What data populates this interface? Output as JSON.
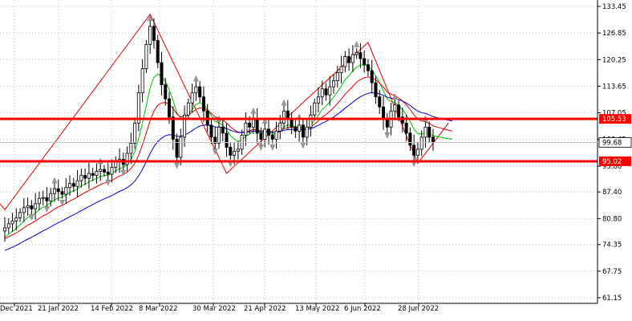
{
  "chart_data": {
    "type": "candlestick",
    "y_axis": {
      "ticks": [
        "133.45",
        "126.85",
        "120.25",
        "113.65",
        "107.05",
        "100.45",
        "93.80",
        "87.40",
        "80.80",
        "74.35",
        "67.75",
        "61.15"
      ],
      "ylim": [
        61.15,
        133.45
      ]
    },
    "x_axis": {
      "ticks": [
        "Dec 2021",
        "21 Jan 2022",
        "14 Feb 2022",
        "8 Mar 2022",
        "30 Mar 2022",
        "21 Apr 2022",
        "13 May 2022",
        "6 Jun 2022",
        "28 Jun 2022"
      ]
    },
    "horizontal_lines": [
      {
        "label": "105.53",
        "value": 105.53,
        "color": "#ff0000"
      },
      {
        "label": "95.02",
        "value": 95.02,
        "color": "#ff0000"
      }
    ],
    "current_price": {
      "label": "99.68",
      "value": 99.68
    },
    "price_close_approx": [
      78.5,
      79.5,
      80.2,
      81.0,
      82.3,
      83.5,
      84.0,
      83.2,
      84.5,
      85.8,
      86.0,
      85.2,
      87.0,
      88.2,
      87.5,
      86.8,
      88.5,
      89.5,
      88.8,
      90.2,
      91.5,
      90.8,
      92.0,
      91.5,
      92.5,
      93.0,
      92.3,
      91.8,
      93.5,
      94.8,
      95.5,
      94.2,
      97.0,
      99.5,
      104.5,
      112.0,
      118.0,
      124.0,
      128.5,
      125.0,
      119.5,
      114.0,
      110.5,
      106.0,
      100.5,
      96.0,
      101.0,
      106.5,
      109.5,
      112.0,
      113.5,
      111.0,
      107.5,
      104.0,
      101.0,
      99.5,
      103.5,
      102.0,
      98.5,
      96.5,
      97.5,
      98.0,
      101.5,
      104.5,
      103.5,
      105.5,
      102.0,
      100.5,
      103.0,
      101.5,
      100.5,
      102.5,
      104.5,
      107.5,
      105.5,
      103.5,
      102.5,
      104.0,
      101.0,
      103.5,
      106.5,
      109.5,
      111.0,
      113.0,
      111.5,
      113.5,
      115.0,
      117.0,
      118.5,
      121.0,
      119.5,
      121.5,
      122.0,
      120.5,
      119.0,
      117.5,
      114.5,
      111.0,
      108.5,
      105.5,
      103.5,
      107.5,
      109.0,
      106.0,
      104.5,
      102.0,
      99.0,
      96.5,
      98.0,
      101.0,
      103.5,
      101.0,
      99.68
    ],
    "moving_averages": [
      {
        "color": "#00c000",
        "period": 5
      },
      {
        "color": "#e00000",
        "period": 10
      },
      {
        "color": "#0000c8",
        "period": 20
      }
    ],
    "zigzag": [
      {
        "i": 0,
        "v": 83.0
      },
      {
        "i": 38,
        "v": 131.5
      },
      {
        "i": 58,
        "v": 92.0
      },
      {
        "i": 95,
        "v": 124.5
      },
      {
        "i": 108,
        "v": 94.5
      },
      {
        "i": 116,
        "v": 104.5
      }
    ]
  }
}
